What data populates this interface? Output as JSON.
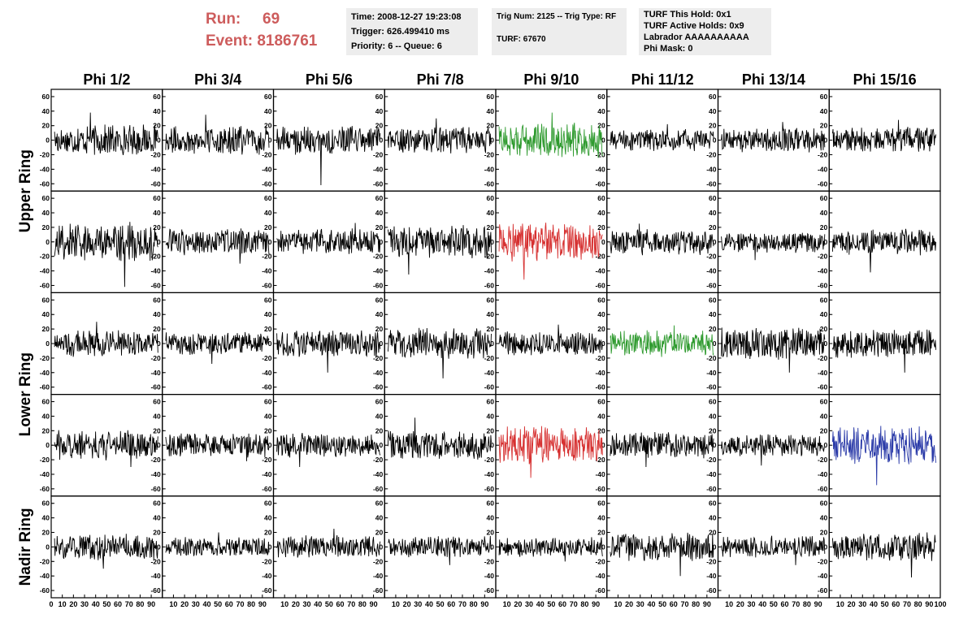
{
  "header": {
    "run_label": "Run:",
    "run_value": "69",
    "event_label": "Event:",
    "event_value": "8186761",
    "time_box": {
      "time": "Time: 2008-12-27 19:23:08",
      "trigger": "Trigger: 626.499410 ms",
      "priority": "Priority: 6 -- Queue: 6"
    },
    "trig_box": {
      "trig": "Trig Num: 2125 -- Trig Type: RF",
      "turf": "TURF: 67670"
    },
    "turf_box": {
      "hold": "TURF This Hold: 0x1",
      "active": "TURF Active Holds: 0x9",
      "labrador": "Labrador AAAAAAAAAA",
      "phimask": "Phi Mask: 0"
    }
  },
  "chart_data": {
    "type": "line",
    "columns": [
      "Phi 1/2",
      "Phi 3/4",
      "Phi 5/6",
      "Phi 7/8",
      "Phi 9/10",
      "Phi 11/12",
      "Phi 13/14",
      "Phi 15/16"
    ],
    "ring_labels": [
      {
        "label": "Upper Ring",
        "rows": [
          0,
          1
        ]
      },
      {
        "label": "Lower Ring",
        "rows": [
          2,
          3
        ]
      },
      {
        "label": "Nadir Ring",
        "rows": [
          4
        ]
      }
    ],
    "rows": 5,
    "xlim": [
      0,
      100
    ],
    "ylim": [
      -70,
      70
    ],
    "yticks": [
      -60,
      -40,
      -20,
      0,
      20,
      40,
      60
    ],
    "xticks_first": [
      "0",
      "10",
      "20",
      "30",
      "40",
      "50",
      "60",
      "70",
      "80",
      "90"
    ],
    "xticks_inner": [
      "10",
      "20",
      "30",
      "40",
      "50",
      "60",
      "70",
      "80",
      "90"
    ],
    "xticks_last": [
      "10",
      "20",
      "30",
      "40",
      "50",
      "60",
      "70",
      "80",
      "90",
      "100"
    ],
    "grid": false,
    "colors": {
      "default": "#000000",
      "green": "#2e9a2e",
      "red": "#d63030",
      "blue": "#2a3aa8"
    },
    "trace_x_range": [
      3,
      96
    ],
    "trace_points": 200,
    "traces": [
      {
        "row": 0,
        "col": 0,
        "color": "default",
        "amplitude": 14,
        "peak": 38
      },
      {
        "row": 0,
        "col": 1,
        "color": "default",
        "amplitude": 13,
        "peak": 35
      },
      {
        "row": 0,
        "col": 2,
        "color": "default",
        "amplitude": 13,
        "peak": -62
      },
      {
        "row": 0,
        "col": 3,
        "color": "default",
        "amplitude": 12,
        "peak": 30
      },
      {
        "row": 0,
        "col": 4,
        "color": "green",
        "amplitude": 16,
        "peak": 38
      },
      {
        "row": 0,
        "col": 5,
        "color": "default",
        "amplitude": 10,
        "peak": 22
      },
      {
        "row": 0,
        "col": 6,
        "color": "default",
        "amplitude": 11,
        "peak": 25
      },
      {
        "row": 0,
        "col": 7,
        "color": "default",
        "amplitude": 12,
        "peak": 28
      },
      {
        "row": 1,
        "col": 0,
        "color": "default",
        "amplitude": 18,
        "peak": -62
      },
      {
        "row": 1,
        "col": 1,
        "color": "default",
        "amplitude": 12,
        "peak": -30
      },
      {
        "row": 1,
        "col": 2,
        "color": "default",
        "amplitude": 12,
        "peak": 26
      },
      {
        "row": 1,
        "col": 3,
        "color": "default",
        "amplitude": 15,
        "peak": -45
      },
      {
        "row": 1,
        "col": 4,
        "color": "red",
        "amplitude": 18,
        "peak": -52
      },
      {
        "row": 1,
        "col": 5,
        "color": "default",
        "amplitude": 12,
        "peak": 25
      },
      {
        "row": 1,
        "col": 6,
        "color": "default",
        "amplitude": 10,
        "peak": -25
      },
      {
        "row": 1,
        "col": 7,
        "color": "default",
        "amplitude": 12,
        "peak": -42
      },
      {
        "row": 2,
        "col": 0,
        "color": "default",
        "amplitude": 12,
        "peak": 30
      },
      {
        "row": 2,
        "col": 1,
        "color": "default",
        "amplitude": 11,
        "peak": -28
      },
      {
        "row": 2,
        "col": 2,
        "color": "default",
        "amplitude": 13,
        "peak": -40
      },
      {
        "row": 2,
        "col": 3,
        "color": "default",
        "amplitude": 14,
        "peak": -48
      },
      {
        "row": 2,
        "col": 4,
        "color": "default",
        "amplitude": 11,
        "peak": 26
      },
      {
        "row": 2,
        "col": 5,
        "color": "green",
        "amplitude": 12,
        "peak": 25
      },
      {
        "row": 2,
        "col": 6,
        "color": "default",
        "amplitude": 15,
        "peak": -40
      },
      {
        "row": 2,
        "col": 7,
        "color": "default",
        "amplitude": 13,
        "peak": -40
      },
      {
        "row": 3,
        "col": 0,
        "color": "default",
        "amplitude": 14,
        "peak": -30
      },
      {
        "row": 3,
        "col": 1,
        "color": "default",
        "amplitude": 11,
        "peak": -22
      },
      {
        "row": 3,
        "col": 2,
        "color": "default",
        "amplitude": 11,
        "peak": -30
      },
      {
        "row": 3,
        "col": 3,
        "color": "default",
        "amplitude": 13,
        "peak": 38
      },
      {
        "row": 3,
        "col": 4,
        "color": "red",
        "amplitude": 18,
        "peak": -45
      },
      {
        "row": 3,
        "col": 5,
        "color": "default",
        "amplitude": 12,
        "peak": -30
      },
      {
        "row": 3,
        "col": 6,
        "color": "default",
        "amplitude": 10,
        "peak": -28
      },
      {
        "row": 3,
        "col": 7,
        "color": "blue",
        "amplitude": 18,
        "peak": -55
      },
      {
        "row": 4,
        "col": 0,
        "color": "default",
        "amplitude": 12,
        "peak": -30
      },
      {
        "row": 4,
        "col": 1,
        "color": "default",
        "amplitude": 9,
        "peak": 20
      },
      {
        "row": 4,
        "col": 2,
        "color": "default",
        "amplitude": 11,
        "peak": 25
      },
      {
        "row": 4,
        "col": 3,
        "color": "default",
        "amplitude": 10,
        "peak": -25
      },
      {
        "row": 4,
        "col": 4,
        "color": "default",
        "amplitude": 9,
        "peak": -20
      },
      {
        "row": 4,
        "col": 5,
        "color": "default",
        "amplitude": 13,
        "peak": -40
      },
      {
        "row": 4,
        "col": 6,
        "color": "default",
        "amplitude": 10,
        "peak": -25
      },
      {
        "row": 4,
        "col": 7,
        "color": "default",
        "amplitude": 13,
        "peak": -42
      }
    ]
  }
}
